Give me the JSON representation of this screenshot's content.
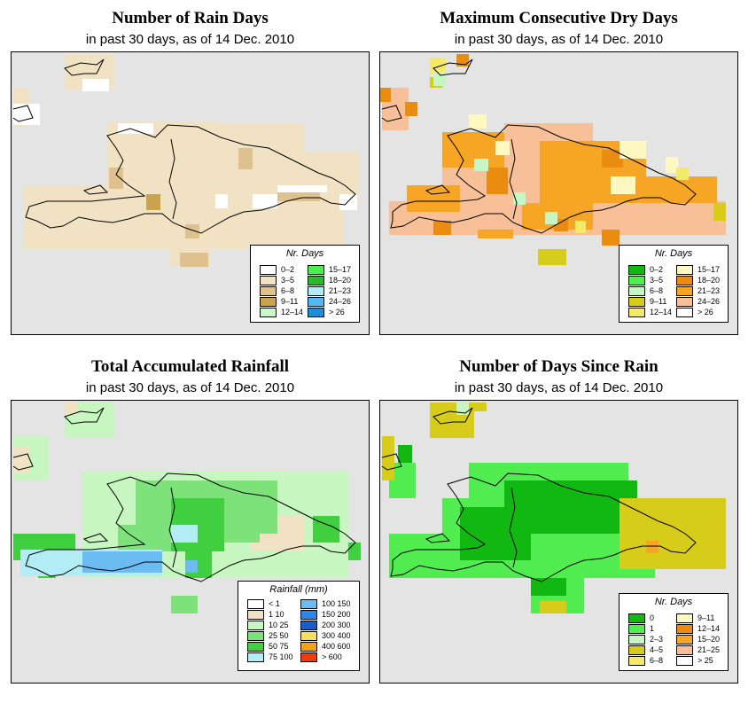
{
  "panels": [
    {
      "title": "Number of Rain Days",
      "subtitle": "in past 30 days, as of  14 Dec. 2010",
      "legend": {
        "title": "Nr. Days",
        "items": [
          {
            "label": "0–2",
            "color": "#ffffff"
          },
          {
            "label": "3–5",
            "color": "#f2e2c4"
          },
          {
            "label": "6–8",
            "color": "#dfc18f"
          },
          {
            "label": "9–11",
            "color": "#caa44d"
          },
          {
            "label": "12–14",
            "color": "#ccf7cc"
          },
          {
            "label": "15–17",
            "color": "#4ded4d"
          },
          {
            "label": "18–20",
            "color": "#2eb82e"
          },
          {
            "label": "21–23",
            "color": "#b2ecf4"
          },
          {
            "label": "24–26",
            "color": "#55b8f0"
          },
          {
            "label": "> 26",
            "color": "#1e8fd0"
          }
        ]
      }
    },
    {
      "title": "Maximum Consecutive Dry Days",
      "subtitle": "in past 30 days, as of  14 Dec. 2010",
      "legend": {
        "title": "Nr. Days",
        "items": [
          {
            "label": "0–2",
            "color": "#12b812"
          },
          {
            "label": "3–5",
            "color": "#50ec50"
          },
          {
            "label": "6–8",
            "color": "#c6f6c6"
          },
          {
            "label": "9–11",
            "color": "#d8cc1a"
          },
          {
            "label": "12–14",
            "color": "#f5e96a"
          },
          {
            "label": "15–17",
            "color": "#fff8c0"
          },
          {
            "label": "18–20",
            "color": "#e98c10"
          },
          {
            "label": "21–23",
            "color": "#f6a524"
          },
          {
            "label": "24–26",
            "color": "#f8c098"
          },
          {
            "label": "> 26",
            "color": "#ffffff"
          }
        ]
      }
    },
    {
      "title": "Total Accumulated Rainfall",
      "subtitle": "in past 30 days, as of  14 Dec. 2010",
      "legend": {
        "title": "Rainfall (mm)",
        "items": [
          {
            "label": "< 1",
            "color": "#ffffff"
          },
          {
            "label": "1   10",
            "color": "#f2e2c4"
          },
          {
            "label": "10   25",
            "color": "#c8f6c0"
          },
          {
            "label": "25   50",
            "color": "#7ee27a"
          },
          {
            "label": "50   75",
            "color": "#3fcf3f"
          },
          {
            "label": "75  100",
            "color": "#b2ecf4"
          },
          {
            "label": "100  150",
            "color": "#6cbcf4"
          },
          {
            "label": "150  200",
            "color": "#2e86e6"
          },
          {
            "label": "200  300",
            "color": "#1a5ccc"
          },
          {
            "label": "300  400",
            "color": "#f5e060"
          },
          {
            "label": "400  600",
            "color": "#f4a21a"
          },
          {
            "label": "> 600",
            "color": "#f03a10"
          }
        ]
      }
    },
    {
      "title": "Number of Days Since Rain",
      "subtitle": "in past 30 days, as of  14 Dec. 2010",
      "legend": {
        "title": "Nr. Days",
        "items": [
          {
            "label": "0",
            "color": "#12b812"
          },
          {
            "label": "1",
            "color": "#50ec50"
          },
          {
            "label": "2–3",
            "color": "#c6f6c6"
          },
          {
            "label": "4–5",
            "color": "#d8cc1a"
          },
          {
            "label": "6–8",
            "color": "#f5e96a"
          },
          {
            "label": "9–11",
            "color": "#fff8c0"
          },
          {
            "label": "12–14",
            "color": "#e98c10"
          },
          {
            "label": "15–20",
            "color": "#f6a524"
          },
          {
            "label": "21–25",
            "color": "#f8c098"
          },
          {
            "label": "> 25",
            "color": "#ffffff"
          }
        ]
      }
    }
  ]
}
